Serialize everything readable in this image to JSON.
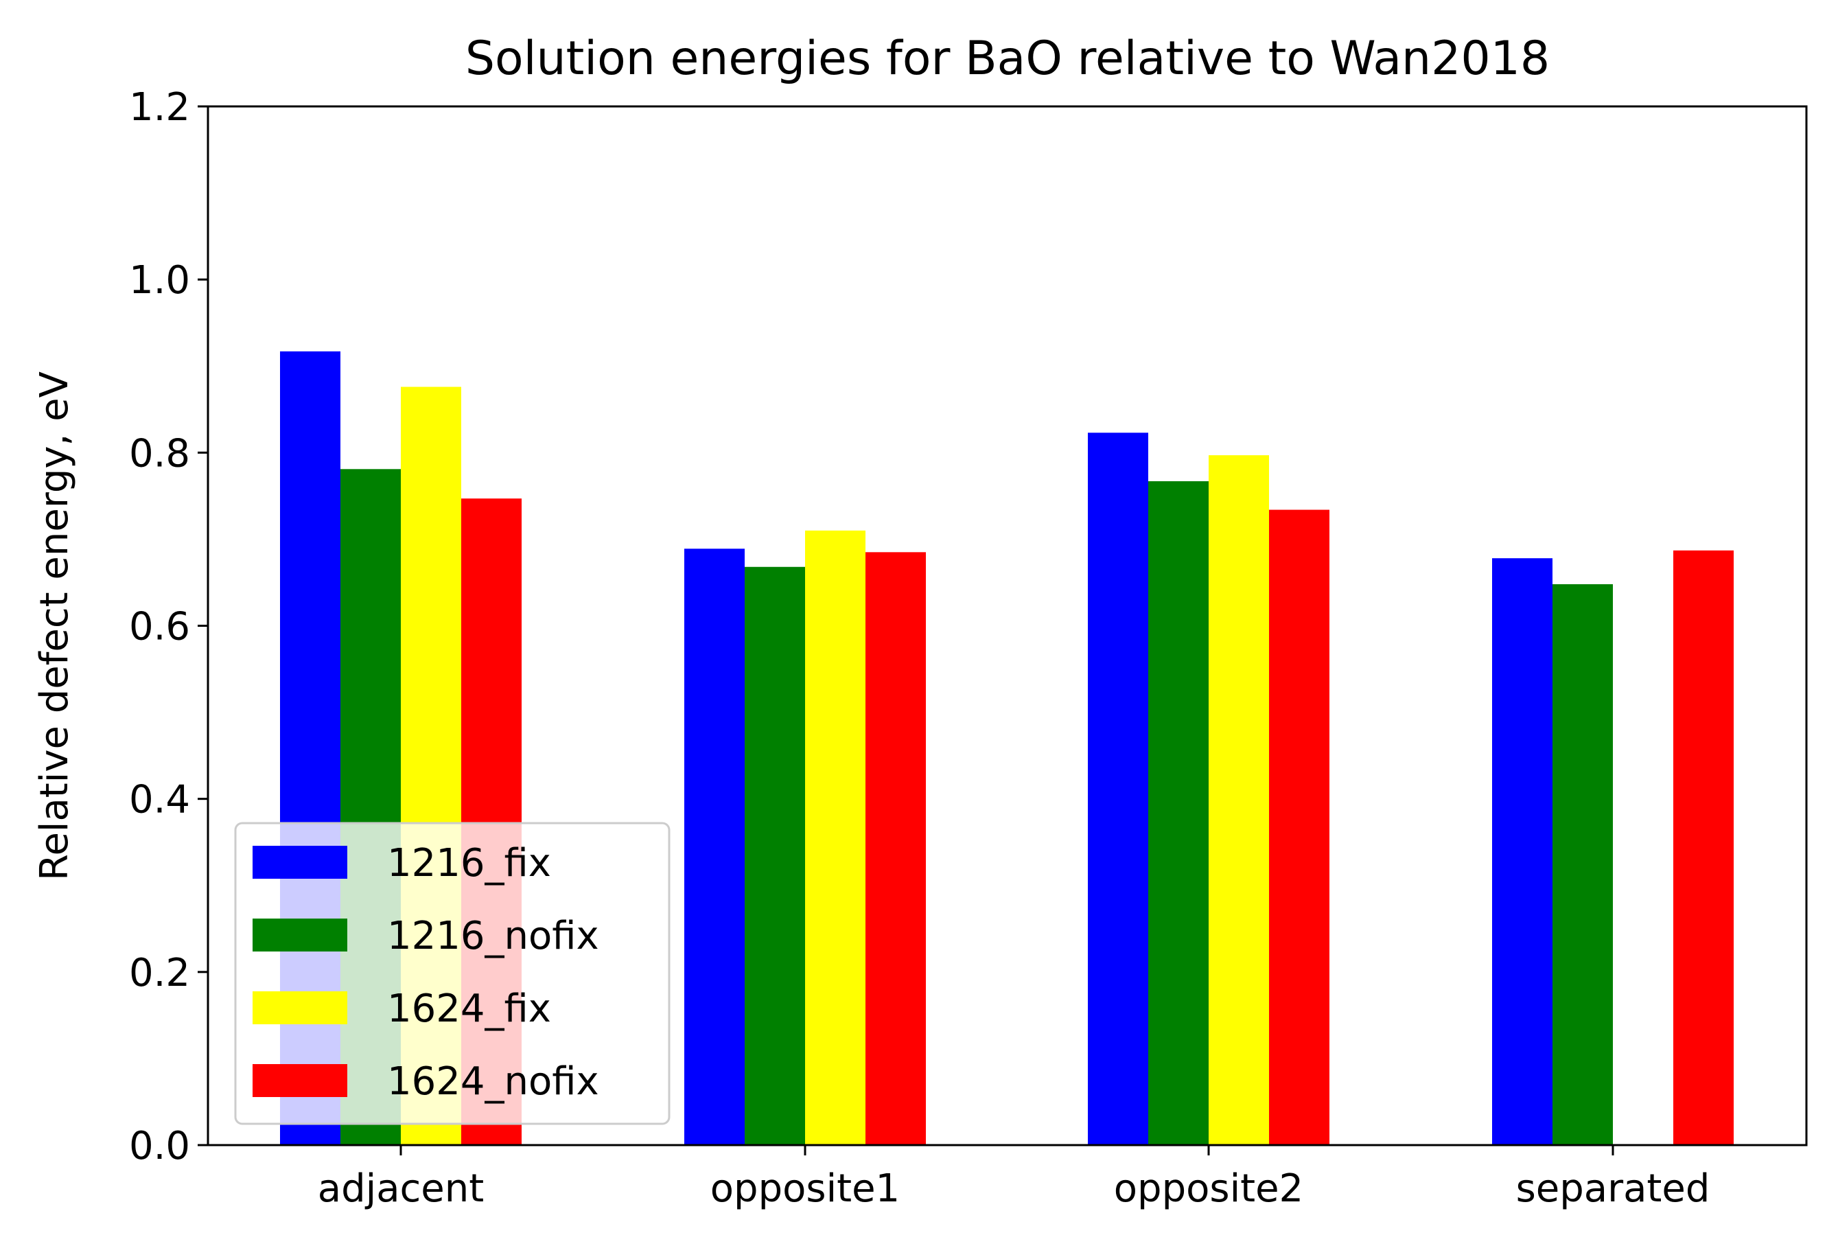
{
  "chart_data": {
    "type": "bar",
    "title": "Solution energies for BaO relative to Wan2018",
    "xlabel": "",
    "ylabel": "Relative defect energy, eV",
    "categories": [
      "adjacent",
      "opposite1",
      "opposite2",
      "separated"
    ],
    "ylim": [
      0,
      1.2
    ],
    "yticks": [
      0.0,
      0.2,
      0.4,
      0.6,
      0.8,
      1.0,
      1.2
    ],
    "ytick_labels": [
      "0.0",
      "0.2",
      "0.4",
      "0.6",
      "0.8",
      "1.0",
      "1.2"
    ],
    "grid": false,
    "legend": "lower-left",
    "series": [
      {
        "name": "1216_fix",
        "color": "#0000ff",
        "values": [
          0.917,
          0.689,
          0.823,
          0.678
        ]
      },
      {
        "name": "1216_nofix",
        "color": "#008000",
        "values": [
          0.781,
          0.668,
          0.767,
          0.648
        ]
      },
      {
        "name": "1624_fix",
        "color": "#ffff00",
        "values": [
          0.876,
          0.71,
          0.797,
          null
        ]
      },
      {
        "name": "1624_nofix",
        "color": "#ff0000",
        "values": [
          0.747,
          0.685,
          0.734,
          0.687
        ]
      }
    ]
  }
}
